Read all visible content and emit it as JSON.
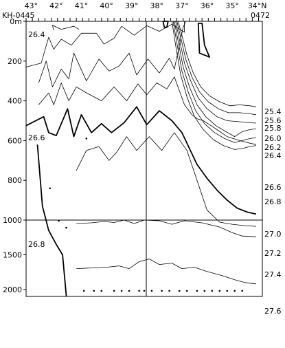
{
  "chart_data": {
    "type": "contour",
    "station_left": "KH-0445",
    "station_right": "0472",
    "x_tick_labels": [
      "43°",
      "42°",
      "41°",
      "40°",
      "39°",
      "38°",
      "37°",
      "36°",
      "35°",
      "34°N"
    ],
    "y_tick_labels": [
      "0m",
      "200",
      "400",
      "600",
      "800",
      "1000",
      "1500",
      "2000"
    ],
    "y_upper_range_m": [
      0,
      1000
    ],
    "y_lower_range_m": [
      1000,
      2100
    ],
    "x_range_deg": [
      43.2,
      33.8
    ],
    "contour_values_left": [
      "26.4",
      "26.6",
      "26.8",
      "27.0"
    ],
    "contour_values_right": [
      "25.4",
      "25.6",
      "25.8",
      "26.0",
      "26.2",
      "26.4",
      "26.6",
      "26.8",
      "27.0",
      "27.2",
      "27.4",
      "27.6"
    ],
    "contours": [
      {
        "label": "26.4",
        "bold": false,
        "points": [
          [
            42.1,
            45
          ],
          [
            42.15,
            20
          ],
          [
            41.8,
            40
          ],
          [
            41.3,
            25
          ],
          [
            41.1,
            40
          ]
        ]
      },
      {
        "label": "26.4",
        "bold": false,
        "points": [
          [
            43.2,
            230
          ],
          [
            42.6,
            210
          ],
          [
            42.3,
            80
          ],
          [
            42.1,
            140
          ],
          [
            41.8,
            90
          ],
          [
            41.4,
            120
          ],
          [
            41.0,
            60
          ],
          [
            40.4,
            60
          ],
          [
            40.1,
            115
          ],
          [
            39.7,
            85
          ],
          [
            39.4,
            25
          ],
          [
            38.9,
            70
          ],
          [
            38.4,
            22
          ],
          [
            37.9,
            50
          ],
          [
            37.4,
            15
          ],
          [
            36.9,
            55
          ],
          [
            36.9,
            -10
          ]
        ]
      },
      {
        "label": "26.6",
        "bold": false,
        "points": [
          [
            42.7,
            310
          ],
          [
            42.4,
            200
          ],
          [
            42.15,
            330
          ],
          [
            41.8,
            240
          ],
          [
            41.5,
            290
          ],
          [
            41.3,
            160
          ],
          [
            40.8,
            300
          ],
          [
            40.3,
            190
          ],
          [
            39.9,
            250
          ],
          [
            39.5,
            225
          ],
          [
            39.1,
            160
          ],
          [
            38.8,
            270
          ],
          [
            38.35,
            190
          ],
          [
            37.9,
            260
          ],
          [
            37.5,
            185
          ],
          [
            37.3,
            240
          ],
          [
            36.95,
            30
          ],
          [
            36.85,
            -10
          ]
        ]
      },
      {
        "label": "26.8",
        "bold": false,
        "points": [
          [
            42.7,
            420
          ],
          [
            42.5,
            390
          ],
          [
            42.3,
            360
          ],
          [
            42.1,
            420
          ],
          [
            41.8,
            310
          ],
          [
            41.5,
            400
          ],
          [
            41.2,
            330
          ],
          [
            40.8,
            360
          ],
          [
            40.2,
            400
          ],
          [
            39.7,
            330
          ],
          [
            39.2,
            400
          ],
          [
            38.75,
            315
          ],
          [
            38.4,
            370
          ],
          [
            38.0,
            310
          ],
          [
            37.6,
            340
          ],
          [
            37.3,
            280
          ],
          [
            36.9,
            420
          ],
          [
            36.6,
            470
          ],
          [
            36.4,
            490
          ],
          [
            36.15,
            500
          ],
          [
            35.9,
            520
          ],
          [
            35.6,
            545
          ],
          [
            35.2,
            580
          ],
          [
            34.7,
            600
          ],
          [
            34.4,
            610
          ],
          [
            34.05,
            620
          ]
        ]
      },
      {
        "label": "27.0",
        "bold": true,
        "points": [
          [
            43.2,
            525
          ],
          [
            42.5,
            480
          ],
          [
            42.3,
            560
          ],
          [
            42.0,
            575
          ],
          [
            41.55,
            440
          ],
          [
            41.3,
            580
          ],
          [
            41.0,
            470
          ],
          [
            40.6,
            560
          ],
          [
            40.2,
            515
          ],
          [
            39.8,
            560
          ],
          [
            39.3,
            510
          ],
          [
            38.8,
            430
          ],
          [
            38.4,
            520
          ],
          [
            37.9,
            450
          ],
          [
            37.4,
            500
          ],
          [
            37.0,
            560
          ],
          [
            36.7,
            640
          ],
          [
            36.4,
            720
          ],
          [
            36.0,
            790
          ],
          [
            35.6,
            850
          ],
          [
            35.2,
            900
          ],
          [
            34.8,
            940
          ],
          [
            34.4,
            960
          ],
          [
            34.05,
            970
          ]
        ]
      },
      {
        "label": "27.2",
        "bold": false,
        "points": [
          [
            41.2,
            750
          ],
          [
            40.8,
            650
          ],
          [
            40.3,
            630
          ],
          [
            39.9,
            700
          ],
          [
            39.6,
            660
          ],
          [
            39.2,
            580
          ],
          [
            38.8,
            650
          ],
          [
            38.3,
            580
          ],
          [
            37.8,
            650
          ],
          [
            37.3,
            560
          ],
          [
            36.8,
            650
          ],
          [
            36.4,
            800
          ],
          [
            36.0,
            950
          ],
          [
            35.5,
            1030
          ],
          [
            35.0,
            1060
          ],
          [
            34.5,
            1080
          ],
          [
            34.05,
            1090
          ]
        ]
      },
      {
        "label": "27.4",
        "bold": false,
        "points": [
          [
            41.2,
            1050
          ],
          [
            40.6,
            1040
          ],
          [
            40.1,
            1020
          ],
          [
            39.7,
            1035
          ],
          [
            39.3,
            1000
          ],
          [
            38.9,
            1050
          ],
          [
            38.5,
            1000
          ],
          [
            37.9,
            1010
          ],
          [
            37.4,
            1060
          ],
          [
            36.9,
            1010
          ],
          [
            36.2,
            1040
          ],
          [
            35.5,
            1100
          ],
          [
            35.0,
            1180
          ],
          [
            34.6,
            1230
          ],
          [
            34.05,
            1240
          ]
        ]
      },
      {
        "label": "27.6",
        "bold": false,
        "points": [
          [
            41.2,
            1700
          ],
          [
            40.6,
            1690
          ],
          [
            40.0,
            1680
          ],
          [
            39.5,
            1660
          ],
          [
            39.1,
            1700
          ],
          [
            38.7,
            1600
          ],
          [
            38.3,
            1560
          ],
          [
            37.9,
            1640
          ],
          [
            37.4,
            1620
          ],
          [
            37.0,
            1700
          ],
          [
            36.5,
            1680
          ],
          [
            36.0,
            1740
          ],
          [
            35.4,
            1800
          ],
          [
            34.9,
            1860
          ],
          [
            34.5,
            1900
          ],
          [
            34.05,
            1920
          ]
        ]
      }
    ],
    "frontal_contours": [
      {
        "label": "25.4",
        "points": [
          [
            37.15,
            -5
          ],
          [
            37.0,
            70
          ],
          [
            36.8,
            170
          ],
          [
            36.55,
            260
          ],
          [
            36.25,
            330
          ],
          [
            35.9,
            375
          ],
          [
            35.5,
            405
          ],
          [
            35.1,
            425
          ],
          [
            34.7,
            420
          ],
          [
            34.3,
            425
          ],
          [
            34.05,
            430
          ]
        ]
      },
      {
        "label": "25.6",
        "points": [
          [
            37.2,
            -5
          ],
          [
            37.05,
            80
          ],
          [
            36.85,
            190
          ],
          [
            36.6,
            280
          ],
          [
            36.3,
            355
          ],
          [
            35.95,
            405
          ],
          [
            35.55,
            440
          ],
          [
            35.15,
            460
          ],
          [
            34.7,
            460
          ],
          [
            34.3,
            465
          ],
          [
            34.05,
            470
          ]
        ]
      },
      {
        "label": "25.8",
        "points": [
          [
            37.25,
            -5
          ],
          [
            37.1,
            90
          ],
          [
            36.9,
            210
          ],
          [
            36.65,
            300
          ],
          [
            36.35,
            385
          ],
          [
            36.0,
            440
          ],
          [
            35.6,
            480
          ],
          [
            35.2,
            500
          ],
          [
            34.75,
            505
          ],
          [
            34.3,
            510
          ],
          [
            34.05,
            512
          ]
        ]
      },
      {
        "label": "26.0",
        "points": [
          [
            37.3,
            -5
          ],
          [
            37.15,
            100
          ],
          [
            36.95,
            230
          ],
          [
            36.7,
            330
          ],
          [
            36.4,
            420
          ],
          [
            36.05,
            480
          ],
          [
            35.65,
            525
          ],
          [
            35.25,
            555
          ],
          [
            34.9,
            580
          ],
          [
            34.6,
            555
          ],
          [
            34.3,
            545
          ],
          [
            34.05,
            540
          ]
        ]
      },
      {
        "label": "26.2",
        "points": [
          [
            37.35,
            -5
          ],
          [
            37.2,
            110
          ],
          [
            37.0,
            250
          ],
          [
            36.75,
            355
          ],
          [
            36.45,
            450
          ],
          [
            36.1,
            515
          ],
          [
            35.7,
            560
          ],
          [
            35.3,
            590
          ],
          [
            34.9,
            610
          ],
          [
            34.6,
            600
          ],
          [
            34.3,
            590
          ],
          [
            34.05,
            585
          ]
        ]
      },
      {
        "label": "26.4",
        "points": [
          [
            37.4,
            -5
          ],
          [
            37.25,
            120
          ],
          [
            37.05,
            270
          ],
          [
            36.8,
            380
          ],
          [
            36.5,
            480
          ],
          [
            36.15,
            545
          ],
          [
            35.75,
            595
          ],
          [
            35.35,
            625
          ],
          [
            34.9,
            645
          ],
          [
            34.6,
            640
          ],
          [
            34.3,
            630
          ],
          [
            34.05,
            625
          ]
        ]
      }
    ],
    "closed_contours": [
      {
        "points": [
          [
            36.35,
            10
          ],
          [
            36.3,
            160
          ],
          [
            35.9,
            180
          ],
          [
            36.1,
            120
          ],
          [
            36.2,
            10
          ]
        ]
      },
      {
        "points": [
          [
            37.75,
            -5
          ],
          [
            37.7,
            30
          ],
          [
            37.6,
            30
          ],
          [
            37.55,
            -5
          ]
        ]
      }
    ],
    "station_marks": [
      {
        "points": [
          [
            42.25,
            820
          ],
          [
            42.05,
            950
          ],
          [
            41.8,
            1050
          ],
          [
            41.25,
            1040
          ]
        ]
      }
    ],
    "lower_dots_depth_m": 2020,
    "lower_dots_lons": [
      40.9,
      40.5,
      40.2,
      39.7,
      39.4,
      39.1,
      38.7,
      38.5,
      38.2,
      37.8,
      37.5,
      37.1,
      36.8,
      36.4,
      36.1,
      35.8,
      35.5,
      35.2,
      34.9,
      34.6
    ],
    "upper_dots": [
      [
        42.25,
        840
      ],
      [
        41.9,
        1010
      ],
      [
        41.6,
        1110
      ],
      [
        40.8,
        590
      ]
    ]
  }
}
